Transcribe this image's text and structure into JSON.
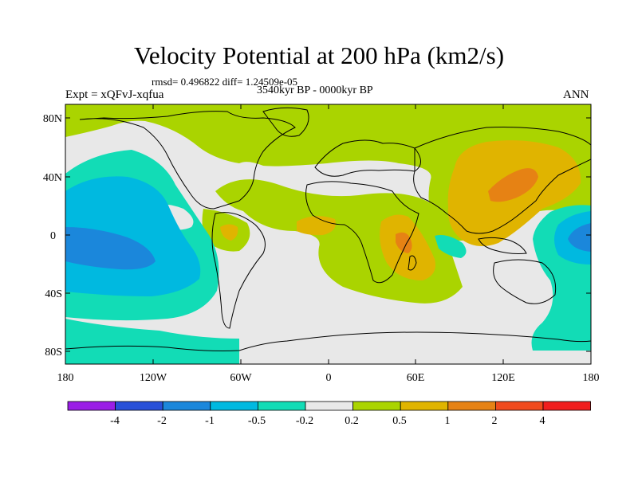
{
  "title": "Velocity Potential at 200 hPa (km2/s)",
  "stats": "rmsd= 0.496822 diff= 1.24509e-05",
  "period": "3540kyr BP - 0000kyr BP",
  "experiment": "Expt = xQFvJ-xqfua",
  "season": "ANN",
  "y_axis_labels": [
    "80N",
    "40N",
    "0",
    "40S",
    "80S"
  ],
  "x_axis_labels": [
    "180",
    "120W",
    "60W",
    "0",
    "60E",
    "120E",
    "180"
  ],
  "colorbar": {
    "labels": [
      "-4",
      "-2",
      "-1",
      "-0.5",
      "-0.2",
      "0.2",
      "0.5",
      "1",
      "2",
      "4"
    ],
    "colors": [
      "#9a1ee6",
      "#2850d8",
      "#1b87db",
      "#00b9e0",
      "#12dcb6",
      "#e8e8e8",
      "#aad400",
      "#e0b400",
      "#e68214",
      "#f04b1e",
      "#f01e1e"
    ]
  },
  "palette": {
    "neutral": "#e8e8e8",
    "cyan": "#12dcb6",
    "lightblue": "#00b9e0",
    "blue": "#1b87db",
    "green": "#aad400",
    "yellow": "#e0b400",
    "orange": "#e68214"
  }
}
